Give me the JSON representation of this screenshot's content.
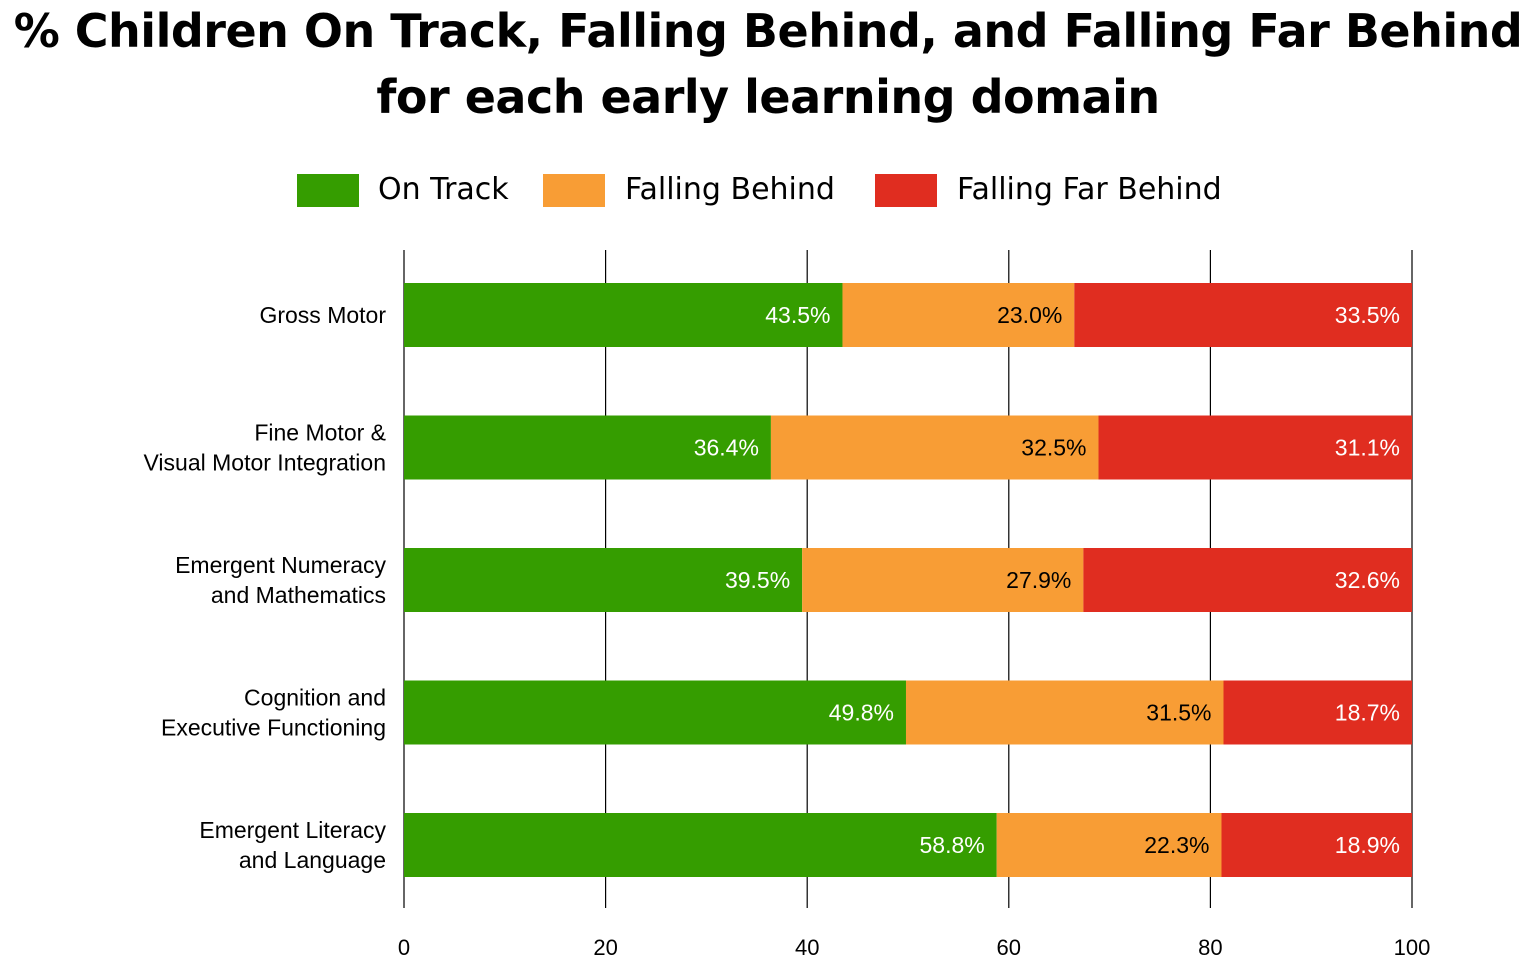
{
  "chart_data": {
    "type": "bar",
    "orientation": "horizontal",
    "stacked": true,
    "title_lines": [
      "% Children On Track, Falling Behind, and Falling Far Behind",
      "for each early learning domain"
    ],
    "categories": [
      [
        "Gross Motor"
      ],
      [
        "Fine Motor &",
        "Visual Motor Integration"
      ],
      [
        "Emergent Numeracy",
        "and Mathematics"
      ],
      [
        "Cognition and",
        "Executive Functioning"
      ],
      [
        "Emergent Literacy",
        "and Language"
      ]
    ],
    "series": [
      {
        "name": "On Track",
        "color": "#359d00",
        "label_color": "#ffffff",
        "values": [
          43.5,
          36.4,
          39.5,
          49.8,
          58.8
        ],
        "labels": [
          "43.5%",
          "36.4%",
          "39.5%",
          "49.8%",
          "58.8%"
        ]
      },
      {
        "name": "Falling Behind",
        "color": "#f89d35",
        "label_color": "#000000",
        "values": [
          23.0,
          32.5,
          27.9,
          31.5,
          22.3
        ],
        "labels": [
          "23.0%",
          "32.5%",
          "27.9%",
          "31.5%",
          "22.3%"
        ]
      },
      {
        "name": "Falling Far Behind",
        "color": "#e02d20",
        "label_color": "#ffffff",
        "values": [
          33.5,
          31.1,
          32.6,
          18.7,
          18.9
        ],
        "labels": [
          "33.5%",
          "31.1%",
          "32.6%",
          "18.7%",
          "18.9%"
        ]
      }
    ],
    "xlim": [
      0,
      100
    ],
    "xticks": [
      0,
      20,
      40,
      60,
      80,
      100
    ],
    "xtick_labels": [
      "0",
      "20",
      "40",
      "60",
      "80",
      "100"
    ],
    "xlabel": "",
    "ylabel": "",
    "grid": "vertical",
    "legend_position": "top"
  }
}
